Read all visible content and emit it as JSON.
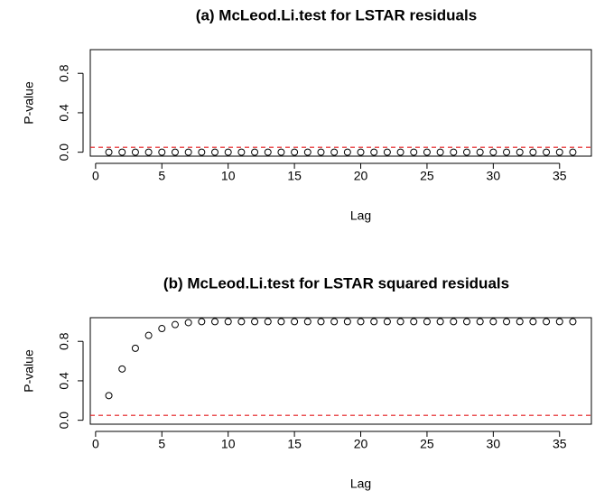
{
  "chart_data": [
    {
      "type": "scatter",
      "title": "(a) McLeod.Li.test for LSTAR residuals",
      "xlabel": "Lag",
      "ylabel": "P-value",
      "x": [
        1,
        2,
        3,
        4,
        5,
        6,
        7,
        8,
        9,
        10,
        11,
        12,
        13,
        14,
        15,
        16,
        17,
        18,
        19,
        20,
        21,
        22,
        23,
        24,
        25,
        26,
        27,
        28,
        29,
        30,
        31,
        32,
        33,
        34,
        35,
        36
      ],
      "values": [
        0,
        0,
        0,
        0,
        0,
        0,
        0,
        0,
        0,
        0,
        0,
        0,
        0,
        0,
        0,
        0,
        0,
        0,
        0,
        0,
        0,
        0,
        0,
        0,
        0,
        0,
        0,
        0,
        0,
        0,
        0,
        0,
        0,
        0,
        0,
        0
      ],
      "color": "#000000",
      "xlim": [
        -0.4,
        37.4
      ],
      "ylim": [
        -0.04,
        1.04
      ],
      "xticks": [
        0,
        5,
        10,
        15,
        20,
        25,
        30,
        35
      ],
      "yticks": [
        {
          "value": 0,
          "label": "0.0"
        },
        {
          "value": 0.4,
          "label": "0.4"
        },
        {
          "value": 0.8,
          "label": "0.8"
        }
      ],
      "hline": {
        "value": 0.05,
        "color": "#e41a1c"
      }
    },
    {
      "type": "scatter",
      "title": "(b) McLeod.Li.test for LSTAR squared residuals",
      "xlabel": "Lag",
      "ylabel": "P-value",
      "x": [
        1,
        2,
        3,
        4,
        5,
        6,
        7,
        8,
        9,
        10,
        11,
        12,
        13,
        14,
        15,
        16,
        17,
        18,
        19,
        20,
        21,
        22,
        23,
        24,
        25,
        26,
        27,
        28,
        29,
        30,
        31,
        32,
        33,
        34,
        35,
        36
      ],
      "values": [
        0.25,
        0.52,
        0.73,
        0.86,
        0.93,
        0.97,
        0.99,
        1,
        1,
        1,
        1,
        1,
        1,
        1,
        1,
        1,
        1,
        1,
        1,
        1,
        1,
        1,
        1,
        1,
        1,
        1,
        1,
        1,
        1,
        1,
        1,
        1,
        1,
        1,
        1,
        1
      ],
      "color": "#000000",
      "xlim": [
        -0.4,
        37.4
      ],
      "ylim": [
        -0.04,
        1.04
      ],
      "xticks": [
        0,
        5,
        10,
        15,
        20,
        25,
        30,
        35
      ],
      "yticks": [
        {
          "value": 0,
          "label": "0.0"
        },
        {
          "value": 0.4,
          "label": "0.4"
        },
        {
          "value": 0.8,
          "label": "0.8"
        }
      ],
      "hline": {
        "value": 0.05,
        "color": "#e41a1c"
      }
    }
  ]
}
